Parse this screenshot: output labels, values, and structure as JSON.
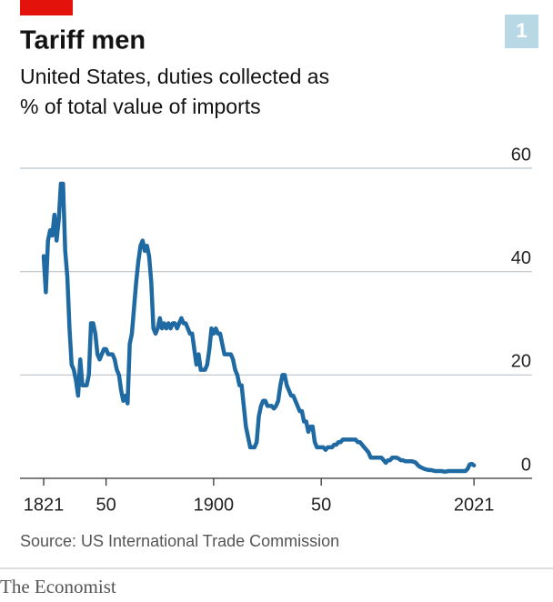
{
  "chart_data": {
    "type": "line",
    "title": "Tariff men",
    "chart_number": "1",
    "subtitle": [
      "United States, duties collected as",
      "% of total value of imports"
    ],
    "source": "Source: US International Trade Commission",
    "brand": "The Economist",
    "color": "#1f6aa3",
    "grid": true,
    "xlim": [
      1810,
      2048
    ],
    "ylim": [
      0,
      60
    ],
    "xticks": [
      1821,
      {
        "value": 1850,
        "label": "50"
      },
      1900,
      {
        "value": 1950,
        "label": "50"
      },
      2021
    ],
    "yticks": [
      0,
      20,
      40,
      60
    ],
    "x": [
      1821,
      1822,
      1823,
      1824,
      1825,
      1826,
      1827,
      1828,
      1829,
      1830,
      1831,
      1832,
      1833,
      1834,
      1835,
      1836,
      1837,
      1838,
      1839,
      1840,
      1841,
      1842,
      1843,
      1844,
      1845,
      1846,
      1847,
      1848,
      1849,
      1850,
      1851,
      1852,
      1853,
      1854,
      1855,
      1856,
      1857,
      1858,
      1859,
      1860,
      1861,
      1862,
      1863,
      1864,
      1865,
      1866,
      1867,
      1868,
      1869,
      1870,
      1871,
      1872,
      1873,
      1874,
      1875,
      1876,
      1877,
      1878,
      1879,
      1880,
      1881,
      1882,
      1883,
      1884,
      1885,
      1886,
      1887,
      1888,
      1889,
      1890,
      1891,
      1892,
      1893,
      1894,
      1895,
      1896,
      1897,
      1898,
      1899,
      1900,
      1901,
      1902,
      1903,
      1904,
      1905,
      1906,
      1907,
      1908,
      1909,
      1910,
      1911,
      1912,
      1913,
      1914,
      1915,
      1916,
      1917,
      1918,
      1919,
      1920,
      1921,
      1922,
      1923,
      1924,
      1925,
      1926,
      1927,
      1928,
      1929,
      1930,
      1931,
      1932,
      1933,
      1934,
      1935,
      1936,
      1937,
      1938,
      1939,
      1940,
      1941,
      1942,
      1943,
      1944,
      1945,
      1946,
      1947,
      1948,
      1949,
      1950,
      1951,
      1952,
      1953,
      1954,
      1955,
      1956,
      1957,
      1958,
      1959,
      1960,
      1961,
      1962,
      1963,
      1964,
      1965,
      1966,
      1967,
      1968,
      1969,
      1970,
      1971,
      1972,
      1973,
      1974,
      1975,
      1976,
      1977,
      1978,
      1979,
      1980,
      1981,
      1982,
      1983,
      1984,
      1985,
      1986,
      1987,
      1988,
      1989,
      1990,
      1991,
      1992,
      1993,
      1994,
      1995,
      1996,
      1997,
      1998,
      1999,
      2000,
      2001,
      2002,
      2003,
      2004,
      2005,
      2006,
      2007,
      2008,
      2009,
      2010,
      2011,
      2012,
      2013,
      2014,
      2015,
      2016,
      2017,
      2018,
      2019,
      2020,
      2021
    ],
    "values": [
      43,
      36,
      46,
      48,
      47,
      51,
      46,
      50,
      57,
      57,
      44,
      39,
      29,
      22,
      21,
      19,
      16,
      23,
      18,
      18,
      18,
      20,
      30,
      30,
      28,
      24,
      23,
      24,
      25,
      25,
      24,
      24,
      24,
      23,
      21,
      20,
      17,
      15,
      16,
      14.5,
      26,
      28,
      33,
      38,
      42,
      45,
      46,
      44,
      45,
      43,
      38,
      29,
      28,
      29,
      31,
      29,
      30,
      29,
      30,
      29,
      30,
      30,
      29,
      30,
      31,
      30,
      30,
      29,
      28,
      28,
      25,
      22,
      24,
      21,
      21,
      21,
      22,
      25,
      29,
      28,
      29,
      28,
      28,
      26,
      24,
      24,
      24,
      24,
      23,
      21,
      20,
      18,
      18,
      14,
      10,
      8,
      6,
      6,
      6,
      7,
      12,
      14,
      15,
      15,
      14,
      14,
      14,
      13.5,
      14,
      15,
      18,
      20,
      20,
      18,
      17,
      16,
      16,
      15,
      14,
      13,
      13,
      11,
      11,
      9,
      10,
      10,
      7,
      6,
      6,
      6,
      6,
      5.5,
      6,
      6,
      6,
      6.5,
      6.5,
      7,
      7,
      7.5,
      7.5,
      7.5,
      7.5,
      7.5,
      7.5,
      7.5,
      7,
      7,
      6.5,
      6,
      5.5,
      5,
      4,
      4,
      4,
      4,
      4,
      4,
      3.5,
      3,
      3.5,
      3.5,
      4,
      4,
      4,
      3.8,
      3.5,
      3.5,
      3.3,
      3.3,
      3.3,
      3.3,
      3.2,
      3,
      2.5,
      2.2,
      2,
      1.8,
      1.7,
      1.6,
      1.6,
      1.5,
      1.4,
      1.4,
      1.4,
      1.4,
      1.3,
      1.3,
      1.4,
      1.4,
      1.4,
      1.4,
      1.4,
      1.4,
      1.4,
      1.4,
      1.4,
      1.8,
      2.7,
      2.8,
      2.5
    ]
  }
}
